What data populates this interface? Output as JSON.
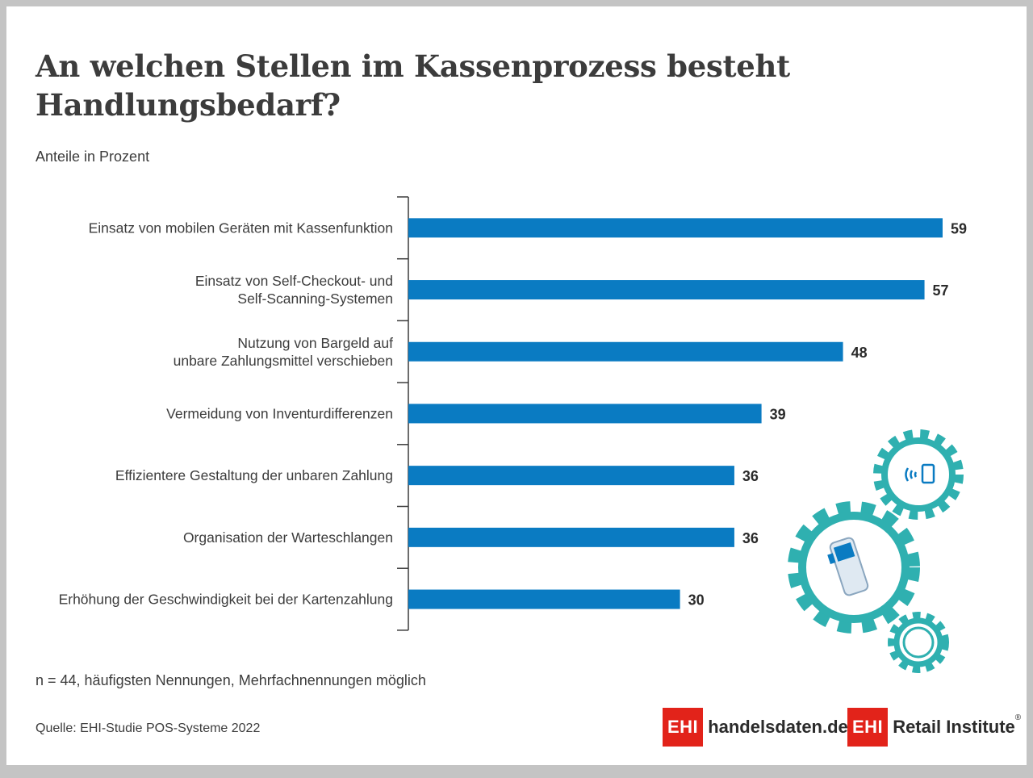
{
  "title": "An welchen Stellen im Kassenprozess besteht Handlungsbedarf?",
  "subtitle": "Anteile in Prozent",
  "footnote": "n = 44, häufigsten Nennungen, Mehrfachnennungen möglich",
  "source": "Quelle: EHI-Studie POS-Systeme 2022",
  "logos": [
    {
      "box": "EHI",
      "text": "handelsdaten.de"
    },
    {
      "box": "EHI",
      "text": "Retail Institute",
      "mark": "®"
    }
  ],
  "colors": {
    "bar": "#0a7bc2",
    "accent": "#2fb0b0",
    "brand_red": "#e2231a"
  },
  "decoration_icons": [
    "gear-contactless-payment-icon",
    "gear-mobile-pos-device-icon",
    "gear-small-icon"
  ],
  "chart_data": {
    "type": "bar",
    "orientation": "horizontal",
    "categories": [
      [
        "Einsatz von mobilen Geräten mit Kassenfunktion"
      ],
      [
        "Einsatz von Self-Checkout- und",
        "Self-Scanning-Systemen"
      ],
      [
        "Nutzung von Bargeld auf",
        "unbare Zahlungsmittel verschieben"
      ],
      [
        "Vermeidung von Inventurdifferenzen"
      ],
      [
        "Effizientere Gestaltung der unbaren Zahlung"
      ],
      [
        "Organisation der Warteschlangen"
      ],
      [
        "Erhöhung der Geschwindigkeit bei der Kartenzahlung"
      ]
    ],
    "values": [
      59,
      57,
      48,
      39,
      36,
      36,
      30
    ],
    "xlim": [
      0,
      59
    ],
    "grid": false,
    "data_labels": true
  }
}
